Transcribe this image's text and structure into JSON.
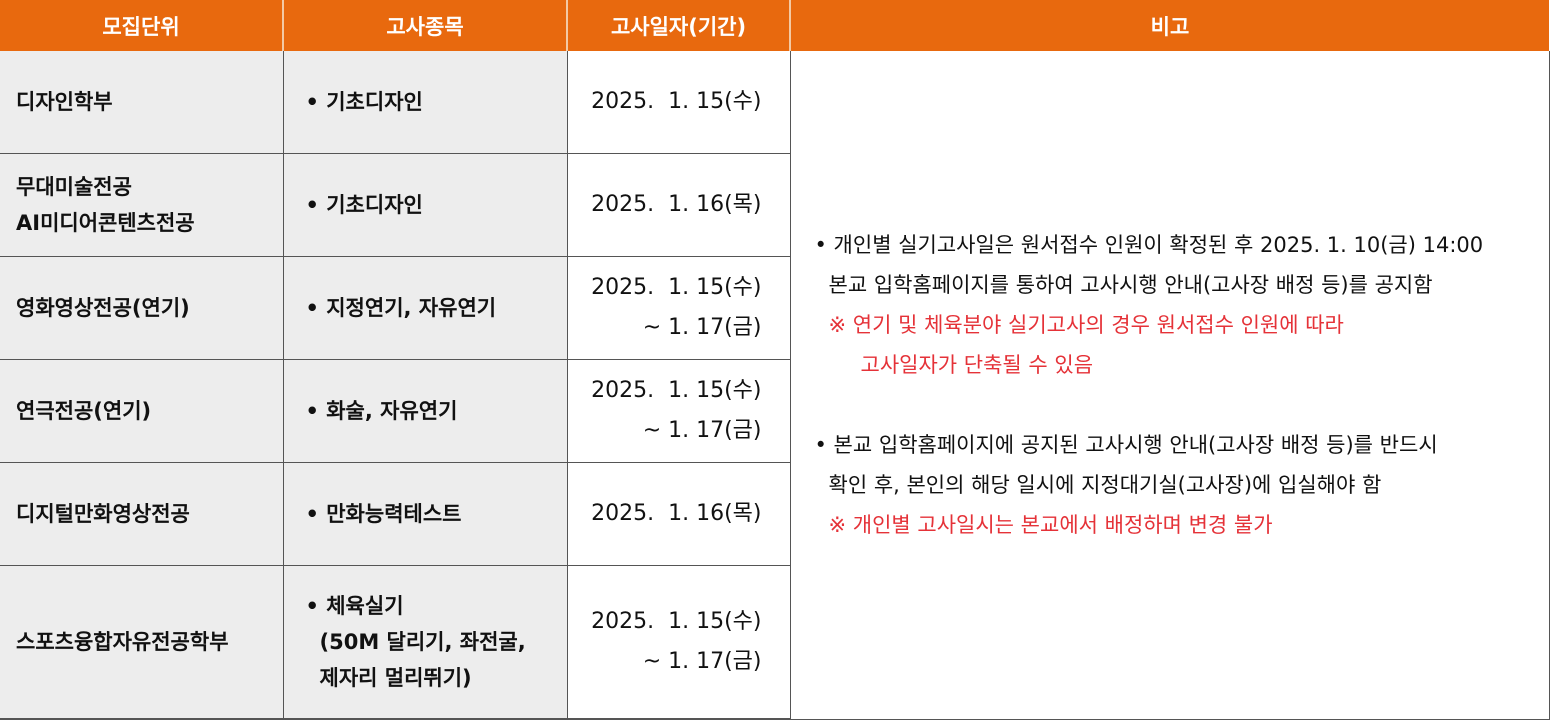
{
  "headers": {
    "unit": "모집단위",
    "subject": "고사종목",
    "date": "고사일자(기간)",
    "note": "비고"
  },
  "rows": [
    {
      "unit": [
        "디자인학부"
      ],
      "subject": [
        "• 기초디자인"
      ],
      "date": [
        "2025.  1. 15(수)"
      ]
    },
    {
      "unit": [
        "무대미술전공",
        "AI미디어콘텐츠전공"
      ],
      "subject": [
        "• 기초디자인"
      ],
      "date": [
        "2025.  1. 16(목)"
      ]
    },
    {
      "unit": [
        "영화영상전공(연기)"
      ],
      "subject": [
        "• 지정연기, 자유연기"
      ],
      "date": [
        "2025.  1. 15(수)",
        "~ 1. 17(금)"
      ]
    },
    {
      "unit": [
        "연극전공(연기)"
      ],
      "subject": [
        "• 화술, 자유연기"
      ],
      "date": [
        "2025.  1. 15(수)",
        "~ 1. 17(금)"
      ]
    },
    {
      "unit": [
        "디지털만화영상전공"
      ],
      "subject": [
        "• 만화능력테스트"
      ],
      "date": [
        "2025.  1. 16(목)"
      ]
    },
    {
      "unit": [
        "스포츠융합자유전공학부"
      ],
      "subject": [
        "• 체육실기",
        "(50M 달리기, 좌전굴,",
        "제자리 멀리뛰기)"
      ],
      "date": [
        "2025.  1. 15(수)",
        "~ 1. 17(금)"
      ]
    }
  ],
  "note": {
    "p1_line1": "• 개인별 실기고사일은 원서접수 인원이 확정된 후 2025. 1. 10(금) 14:00",
    "p1_line2": "본교 입학홈페이지를 통하여 고사시행 안내(고사장 배정 등)를 공지함",
    "p1_red1": "※ 연기 및 체육분야 실기고사의 경우 원서접수 인원에 따라",
    "p1_red2": "고사일자가 단축될 수 있음",
    "p2_line1": "• 본교 입학홈페이지에 공지된 고사시행 안내(고사장 배정 등)를 반드시",
    "p2_line2": "확인 후, 본인의 해당 일시에 지정대기실(고사장)에 입실해야 함",
    "p2_red1": "※ 개인별 고사일시는 본교에서 배정하며 변경 불가"
  },
  "colors": {
    "header_bg": "#e8690e",
    "cell_bg": "#ededed",
    "note_red": "#e53238"
  }
}
